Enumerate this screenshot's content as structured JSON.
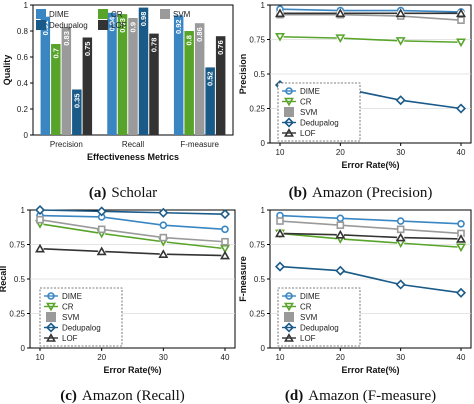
{
  "chart_data": [
    {
      "type": "bar",
      "caption_letter": "(a)",
      "caption_text": "Scholar",
      "xlabel": "Effectiveness Metrics",
      "ylabel": "Quality",
      "ylim": [
        0,
        1
      ],
      "yticks": [
        "0",
        "0.2",
        "0.4",
        "0.6",
        "0.8",
        "1"
      ],
      "categories": [
        "Precision",
        "Recall",
        "F-measure"
      ],
      "legend_placement": "top",
      "series": [
        {
          "name": "DIME",
          "color": "#3a86c2",
          "marker": "square",
          "values": [
            0.91,
            0.94,
            0.92
          ],
          "labels": [
            "0.91",
            "0.94",
            "0.92"
          ]
        },
        {
          "name": "CR",
          "color": "#58a42a",
          "marker": "square",
          "values": [
            0.7,
            0.93,
            0.8
          ],
          "labels": [
            "0.7",
            "0.93",
            "0.8"
          ]
        },
        {
          "name": "SVM",
          "color": "#9a9a9a",
          "marker": "square",
          "values": [
            0.83,
            0.9,
            0.86
          ],
          "labels": [
            "0.83",
            "0.9",
            "0.86"
          ]
        },
        {
          "name": "Dedupalog",
          "color": "#1a5a88",
          "marker": "square",
          "values": [
            0.35,
            0.98,
            0.52
          ],
          "labels": [
            "0.35",
            "0.98",
            "0.52"
          ]
        },
        {
          "name": "LOF",
          "color": "#333333",
          "marker": "square",
          "values": [
            0.75,
            0.78,
            0.76
          ],
          "labels": [
            "0.75",
            "0.78",
            "0.76"
          ]
        }
      ]
    },
    {
      "type": "line",
      "caption_letter": "(b)",
      "caption_text": "Amazon (Precision)",
      "xlabel": "Error Rate(%)",
      "ylabel": "Precision",
      "x": [
        10,
        20,
        30,
        40
      ],
      "xticks": [
        "10",
        "20",
        "30",
        "40"
      ],
      "ylim": [
        0,
        1
      ],
      "yticks": [
        "0",
        "0.25",
        "0.5",
        "0.75",
        "1"
      ],
      "legend_placement": "center-left",
      "series": [
        {
          "name": "DIME",
          "color": "#3a86c2",
          "marker": "circle",
          "values": [
            0.97,
            0.96,
            0.96,
            0.95
          ]
        },
        {
          "name": "CR",
          "color": "#58a42a",
          "marker": "tri-down",
          "values": [
            0.77,
            0.76,
            0.74,
            0.73
          ]
        },
        {
          "name": "SVM",
          "color": "#9a9a9a",
          "marker": "square",
          "values": [
            0.93,
            0.93,
            0.92,
            0.89
          ]
        },
        {
          "name": "Dedupalog",
          "color": "#1a5a88",
          "marker": "diamond",
          "values": [
            0.42,
            0.4,
            0.31,
            0.25
          ]
        },
        {
          "name": "LOF",
          "color": "#333333",
          "marker": "tri-up",
          "values": [
            0.94,
            0.94,
            0.94,
            0.94
          ]
        }
      ]
    },
    {
      "type": "line",
      "caption_letter": "(c)",
      "caption_text": "Amazon (Recall)",
      "xlabel": "Error Rate(%)",
      "ylabel": "Recall",
      "x": [
        10,
        20,
        30,
        40
      ],
      "xticks": [
        "10",
        "20",
        "30",
        "40"
      ],
      "ylim": [
        0,
        1
      ],
      "yticks": [
        "0",
        "0.25",
        "0.5",
        "0.75",
        "1"
      ],
      "legend_placement": "bottom-left",
      "series": [
        {
          "name": "DIME",
          "color": "#3a86c2",
          "marker": "circle",
          "values": [
            0.96,
            0.95,
            0.89,
            0.86
          ]
        },
        {
          "name": "CR",
          "color": "#58a42a",
          "marker": "tri-down",
          "values": [
            0.9,
            0.83,
            0.77,
            0.72
          ]
        },
        {
          "name": "SVM",
          "color": "#9a9a9a",
          "marker": "square",
          "values": [
            0.93,
            0.86,
            0.8,
            0.77
          ]
        },
        {
          "name": "Dedupalog",
          "color": "#1a5a88",
          "marker": "diamond",
          "values": [
            1.0,
            0.99,
            0.98,
            0.97
          ]
        },
        {
          "name": "LOF",
          "color": "#333333",
          "marker": "tri-up",
          "values": [
            0.72,
            0.7,
            0.68,
            0.67
          ]
        }
      ]
    },
    {
      "type": "line",
      "caption_letter": "(d)",
      "caption_text": "Amazon (F-measure)",
      "xlabel": "Error Rate(%)",
      "ylabel": "F-measure",
      "x": [
        10,
        20,
        30,
        40
      ],
      "xticks": [
        "10",
        "20",
        "30",
        "40"
      ],
      "ylim": [
        0,
        1
      ],
      "yticks": [
        "0",
        "0.25",
        "0.5",
        "0.75",
        "1"
      ],
      "legend_placement": "bottom-left",
      "series": [
        {
          "name": "DIME",
          "color": "#3a86c2",
          "marker": "circle",
          "values": [
            0.96,
            0.94,
            0.92,
            0.9
          ]
        },
        {
          "name": "CR",
          "color": "#58a42a",
          "marker": "tri-down",
          "values": [
            0.83,
            0.79,
            0.76,
            0.73
          ]
        },
        {
          "name": "SVM",
          "color": "#9a9a9a",
          "marker": "square",
          "values": [
            0.92,
            0.89,
            0.86,
            0.83
          ]
        },
        {
          "name": "Dedupalog",
          "color": "#1a5a88",
          "marker": "diamond",
          "values": [
            0.59,
            0.56,
            0.46,
            0.4
          ]
        },
        {
          "name": "LOF",
          "color": "#333333",
          "marker": "tri-up",
          "values": [
            0.83,
            0.82,
            0.8,
            0.79
          ]
        }
      ]
    }
  ]
}
